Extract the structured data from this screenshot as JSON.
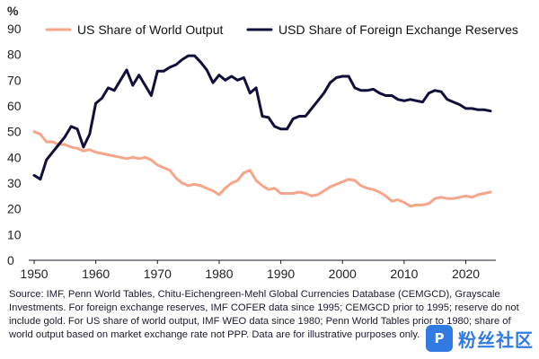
{
  "chart_data": {
    "type": "line",
    "title": "",
    "xlabel": "",
    "ylabel": "%",
    "xlim": [
      1950,
      2024
    ],
    "ylim": [
      0,
      90
    ],
    "x_ticks": [
      1950,
      1960,
      1970,
      1980,
      1990,
      2000,
      2010,
      2020
    ],
    "y_ticks": [
      0,
      10,
      20,
      30,
      40,
      50,
      60,
      70,
      80,
      90
    ],
    "grid": false,
    "legend_position": "top",
    "series": [
      {
        "name": "US Share of World Output",
        "color": "#f4a58a",
        "points": [
          [
            1950,
            50
          ],
          [
            1951,
            49
          ],
          [
            1952,
            46
          ],
          [
            1953,
            46
          ],
          [
            1954,
            45
          ],
          [
            1955,
            45
          ],
          [
            1956,
            44
          ],
          [
            1957,
            43.5
          ],
          [
            1958,
            42.5
          ],
          [
            1959,
            43
          ],
          [
            1960,
            42
          ],
          [
            1961,
            41.5
          ],
          [
            1962,
            41
          ],
          [
            1963,
            40.5
          ],
          [
            1964,
            40
          ],
          [
            1965,
            39.5
          ],
          [
            1966,
            40
          ],
          [
            1967,
            39.5
          ],
          [
            1968,
            40
          ],
          [
            1969,
            39
          ],
          [
            1970,
            37
          ],
          [
            1971,
            36
          ],
          [
            1972,
            35
          ],
          [
            1973,
            32
          ],
          [
            1974,
            30
          ],
          [
            1975,
            29
          ],
          [
            1976,
            29.5
          ],
          [
            1977,
            29
          ],
          [
            1978,
            28
          ],
          [
            1979,
            27
          ],
          [
            1980,
            25.5
          ],
          [
            1981,
            28
          ],
          [
            1982,
            30
          ],
          [
            1983,
            31
          ],
          [
            1984,
            34
          ],
          [
            1985,
            35
          ],
          [
            1986,
            31
          ],
          [
            1987,
            29
          ],
          [
            1988,
            27.5
          ],
          [
            1989,
            28
          ],
          [
            1990,
            26
          ],
          [
            1991,
            26
          ],
          [
            1992,
            26
          ],
          [
            1993,
            26.5
          ],
          [
            1994,
            26
          ],
          [
            1995,
            25
          ],
          [
            1996,
            25.5
          ],
          [
            1997,
            27
          ],
          [
            1998,
            28.5
          ],
          [
            1999,
            29.5
          ],
          [
            2000,
            30.5
          ],
          [
            2001,
            31.5
          ],
          [
            2002,
            31
          ],
          [
            2003,
            29
          ],
          [
            2004,
            28
          ],
          [
            2005,
            27.5
          ],
          [
            2006,
            26.5
          ],
          [
            2007,
            25
          ],
          [
            2008,
            23
          ],
          [
            2009,
            23.5
          ],
          [
            2010,
            22.5
          ],
          [
            2011,
            21
          ],
          [
            2012,
            21.5
          ],
          [
            2013,
            21.5
          ],
          [
            2014,
            22
          ],
          [
            2015,
            24
          ],
          [
            2016,
            24.5
          ],
          [
            2017,
            24
          ],
          [
            2018,
            24
          ],
          [
            2019,
            24.5
          ],
          [
            2020,
            25
          ],
          [
            2021,
            24.5
          ],
          [
            2022,
            25.5
          ],
          [
            2023,
            26
          ],
          [
            2024,
            26.5
          ]
        ]
      },
      {
        "name": "USD Share of Foreign Exchange Reserves",
        "color": "#10103a",
        "points": [
          [
            1950,
            33
          ],
          [
            1951,
            31.5
          ],
          [
            1952,
            39
          ],
          [
            1953,
            42
          ],
          [
            1954,
            45
          ],
          [
            1955,
            48
          ],
          [
            1956,
            52
          ],
          [
            1957,
            51
          ],
          [
            1958,
            44
          ],
          [
            1959,
            49
          ],
          [
            1960,
            61
          ],
          [
            1961,
            63
          ],
          [
            1962,
            67
          ],
          [
            1963,
            66
          ],
          [
            1964,
            70
          ],
          [
            1965,
            74
          ],
          [
            1966,
            68
          ],
          [
            1967,
            72
          ],
          [
            1968,
            68
          ],
          [
            1969,
            64
          ],
          [
            1970,
            73.5
          ],
          [
            1971,
            73.5
          ],
          [
            1972,
            75
          ],
          [
            1973,
            76
          ],
          [
            1974,
            78
          ],
          [
            1975,
            79.5
          ],
          [
            1976,
            79.5
          ],
          [
            1977,
            77
          ],
          [
            1978,
            74
          ],
          [
            1979,
            69
          ],
          [
            1980,
            72
          ],
          [
            1981,
            70
          ],
          [
            1982,
            71.5
          ],
          [
            1983,
            70
          ],
          [
            1984,
            71
          ],
          [
            1985,
            65
          ],
          [
            1986,
            67
          ],
          [
            1987,
            56
          ],
          [
            1988,
            55.5
          ],
          [
            1989,
            52
          ],
          [
            1990,
            51
          ],
          [
            1991,
            51
          ],
          [
            1992,
            55
          ],
          [
            1993,
            56
          ],
          [
            1994,
            56
          ],
          [
            1995,
            59
          ],
          [
            1996,
            62
          ],
          [
            1997,
            65
          ],
          [
            1998,
            69
          ],
          [
            1999,
            71
          ],
          [
            2000,
            71.5
          ],
          [
            2001,
            71.5
          ],
          [
            2002,
            67
          ],
          [
            2003,
            66
          ],
          [
            2004,
            66
          ],
          [
            2005,
            66.5
          ],
          [
            2006,
            65
          ],
          [
            2007,
            64
          ],
          [
            2008,
            64
          ],
          [
            2009,
            62.5
          ],
          [
            2010,
            62
          ],
          [
            2011,
            62.5
          ],
          [
            2012,
            62
          ],
          [
            2013,
            61.5
          ],
          [
            2014,
            65
          ],
          [
            2015,
            66
          ],
          [
            2016,
            65.5
          ],
          [
            2017,
            62.5
          ],
          [
            2018,
            61.5
          ],
          [
            2019,
            60.5
          ],
          [
            2020,
            59
          ],
          [
            2021,
            59
          ],
          [
            2022,
            58.5
          ],
          [
            2023,
            58.5
          ],
          [
            2024,
            58
          ]
        ]
      }
    ]
  },
  "footnote": {
    "text": "Source: IMF, Penn World Tables, Chitu-Eichengreen-Mehl Global Currencies Database (CEMGCD), Grayscale Investments. For foreign exchange reserves, IMF COFER data since 1995; CEMGCD prior to 1995; reserve do not include gold. For US share of world output, IMF WEO data since 1980; Penn World Tables prior to 1980; share of world output based on market exchange rate not PPP. Data are for illustrative purposes only."
  },
  "watermark": {
    "logo_text": "P",
    "text": "粉丝社区"
  }
}
